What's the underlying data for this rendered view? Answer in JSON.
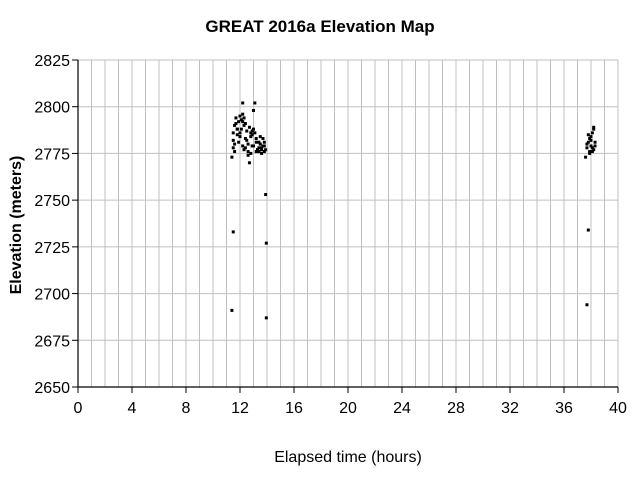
{
  "chart_data": {
    "type": "scatter",
    "title": "GREAT 2016a Elevation Map",
    "xlabel": "Elapsed time (hours)",
    "ylabel": "Elevation (meters)",
    "xlim": [
      0,
      40
    ],
    "ylim": [
      2650,
      2825
    ],
    "xticks": [
      0,
      4,
      8,
      12,
      16,
      20,
      24,
      28,
      32,
      36,
      40
    ],
    "yticks": [
      2650,
      2675,
      2700,
      2725,
      2750,
      2775,
      2800,
      2825
    ],
    "grid": true,
    "legend": "none",
    "marker_color": "#000000",
    "series": [
      {
        "x": [
          11.4,
          11.5,
          11.5,
          11.6,
          11.7,
          11.8,
          11.9,
          12.0,
          12.1,
          12.2,
          12.2,
          12.3,
          12.4,
          12.5,
          12.6,
          12.7,
          12.8,
          12.9,
          13.0,
          13.1,
          13.2,
          13.3,
          13.4,
          13.5,
          13.6,
          13.7,
          13.8,
          13.9,
          11.5,
          11.6,
          11.7,
          11.8,
          11.9,
          12.0,
          12.1,
          12.2,
          12.3,
          12.4,
          12.5,
          12.6,
          12.7,
          12.8,
          12.9,
          13.0,
          13.1,
          13.2,
          13.3,
          13.4,
          13.5,
          13.6,
          13.7,
          13.8,
          11.6,
          11.8,
          12.0,
          12.2,
          12.4,
          12.6,
          12.8,
          13.0,
          13.2,
          13.4,
          13.6,
          13.8,
          12.3,
          12.9,
          11.5,
          13.9,
          11.4,
          13.95,
          13.95,
          37.6,
          37.7,
          37.8,
          37.9,
          38.0,
          38.1,
          38.2,
          38.3,
          37.7,
          37.8,
          37.9,
          38.0,
          38.1,
          38.2,
          38.3,
          37.9,
          38.0,
          38.1,
          38.2,
          37.8,
          37.7
        ],
        "y": [
          2773,
          2778,
          2786,
          2790,
          2794,
          2785,
          2792,
          2795,
          2788,
          2796,
          2802,
          2790,
          2783,
          2787,
          2780,
          2770,
          2786,
          2779,
          2798,
          2802,
          2783,
          2777,
          2776,
          2780,
          2778,
          2783,
          2781,
          2777,
          2782,
          2776,
          2791,
          2788,
          2781,
          2784,
          2793,
          2779,
          2777,
          2791,
          2782,
          2776,
          2789,
          2775,
          2787,
          2779,
          2786,
          2781,
          2777,
          2778,
          2784,
          2775,
          2779,
          2776,
          2780,
          2788,
          2786,
          2792,
          2778,
          2774,
          2784,
          2788,
          2776,
          2781,
          2777,
          2779,
          2794,
          2785,
          2733,
          2753,
          2691,
          2727,
          2687,
          2773,
          2778,
          2781,
          2776,
          2784,
          2786,
          2789,
          2779,
          2780,
          2785,
          2783,
          2782,
          2778,
          2777,
          2781,
          2775,
          2779,
          2776,
          2788,
          2734,
          2694
        ]
      }
    ]
  }
}
